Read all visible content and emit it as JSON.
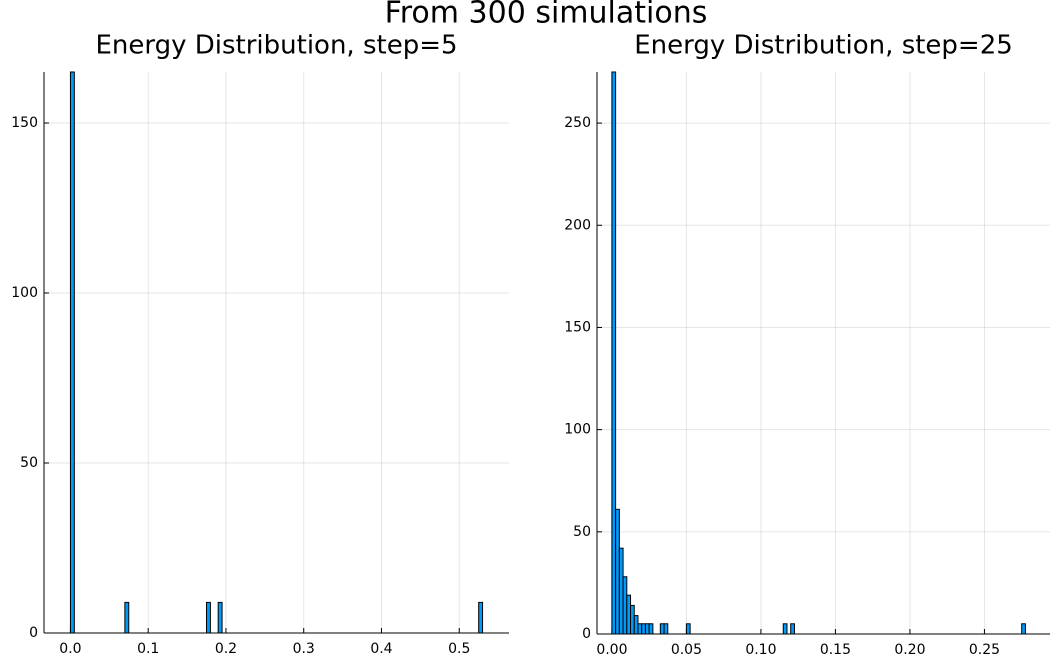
{
  "title": "From 300 simulations",
  "chart_data": [
    {
      "type": "histogram",
      "title": "Energy Distribution, step=5",
      "bins": [
        0,
        0.005,
        0.07,
        0.075,
        0.175,
        0.18,
        0.19,
        0.195,
        0.525,
        0.53
      ],
      "values": [
        165,
        0,
        9,
        0,
        9,
        0,
        9,
        0,
        9
      ],
      "color": "#009af9",
      "xlim": [
        -0.034,
        0.564
      ],
      "ylim": [
        0,
        165
      ],
      "xticks": [
        {
          "value": 0,
          "label": "0.0"
        },
        0.1,
        0.2,
        0.3,
        0.4,
        0.5
      ],
      "yticks": [
        0,
        50,
        100,
        150
      ],
      "grid": true
    },
    {
      "type": "histogram",
      "title": "Energy Distribution, step=25",
      "bins": [
        0,
        0.0025,
        0.005,
        0.0075,
        0.01,
        0.0125,
        0.015,
        0.0175,
        0.02,
        0.0225,
        0.025,
        0.0275,
        0.0325,
        0.035,
        0.0375,
        0.05,
        0.0525,
        0.115,
        0.1175,
        0.12,
        0.1225,
        0.275,
        0.2775
      ],
      "values": [
        275,
        61,
        42,
        28,
        19,
        14,
        9,
        5,
        5,
        5,
        5,
        0,
        5,
        5,
        0,
        5,
        0,
        5,
        0,
        5,
        0,
        5
      ],
      "color": "#009af9",
      "xlim": [
        -0.01,
        0.294
      ],
      "ylim": [
        0,
        275
      ],
      "xticks": [
        {
          "value": 0,
          "label": "0.00"
        },
        {
          "value": 0.05,
          "label": "0.05"
        },
        {
          "value": 0.1,
          "label": "0.10"
        },
        {
          "value": 0.15,
          "label": "0.15"
        },
        {
          "value": 0.2,
          "label": "0.20"
        },
        {
          "value": 0.25,
          "label": "0.25"
        }
      ],
      "yticks": [
        0,
        50,
        100,
        150,
        200,
        250
      ],
      "grid": true
    }
  ]
}
